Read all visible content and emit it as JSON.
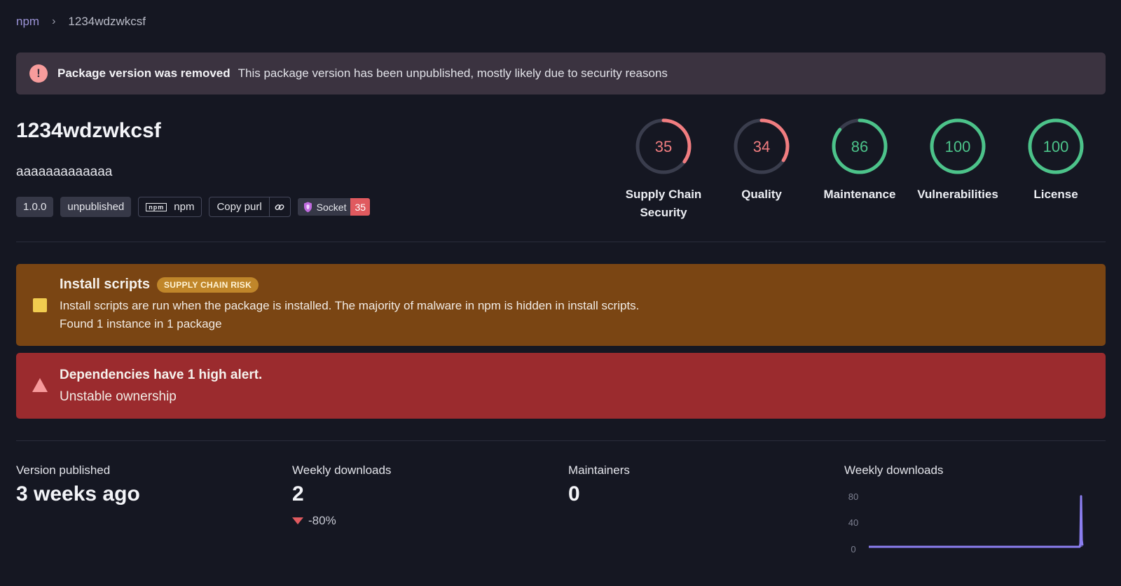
{
  "breadcrumb": {
    "root": "npm",
    "separator": "›",
    "current": "1234wdzwkcsf"
  },
  "banner": {
    "title": "Package version was removed",
    "text": "This package version has been unpublished, mostly likely due to security reasons"
  },
  "package": {
    "name": "1234wdzwkcsf",
    "description": "aaaaaaaaaaaaa",
    "version": "1.0.0",
    "status": "unpublished",
    "registry": "npm",
    "copy_purl": "Copy purl",
    "socket_label": "Socket",
    "socket_score": "35"
  },
  "scores": [
    {
      "value": "35",
      "label": "Supply Chain Security",
      "fraction": 0.35,
      "color": "#f17d80"
    },
    {
      "value": "34",
      "label": "Quality",
      "fraction": 0.34,
      "color": "#f17d80"
    },
    {
      "value": "86",
      "label": "Maintenance",
      "fraction": 0.86,
      "color": "#4cc38a"
    },
    {
      "value": "100",
      "label": "Vulnerabilities",
      "fraction": 1.0,
      "color": "#4cc38a"
    },
    {
      "value": "100",
      "label": "License",
      "fraction": 1.0,
      "color": "#4cc38a"
    }
  ],
  "alerts": {
    "install_scripts": {
      "title": "Install scripts",
      "badge": "SUPPLY CHAIN RISK",
      "description": "Install scripts are run when the package is installed. The majority of malware in npm is hidden in install scripts.",
      "instances": "Found 1 instance in 1 package"
    },
    "dependencies": {
      "title": "Dependencies have 1 high alert.",
      "detail": "Unstable ownership"
    }
  },
  "stats": {
    "version_published": {
      "label": "Version published",
      "value": "3 weeks ago"
    },
    "weekly_downloads": {
      "label": "Weekly downloads",
      "value": "2",
      "change": "-80%"
    },
    "maintainers": {
      "label": "Maintainers",
      "value": "0"
    },
    "chart_label": "Weekly downloads"
  },
  "colors": {
    "background": "#151722",
    "risk_red": "#f17d80",
    "good_green": "#4cc38a",
    "sparkline": "#8b7ef0"
  },
  "chart_data": {
    "type": "area",
    "title": "Weekly downloads",
    "yticks": [
      "80",
      "40",
      "0"
    ],
    "ylim": [
      0,
      80
    ],
    "values": [
      0,
      0,
      0,
      0,
      0,
      0,
      0,
      0,
      0,
      0,
      0,
      0,
      0,
      0,
      0,
      0,
      0,
      0,
      0,
      0,
      0,
      0,
      0,
      0,
      0,
      0,
      0,
      0,
      0,
      0,
      0,
      0,
      0,
      0,
      0,
      0,
      0,
      0,
      0,
      0,
      0,
      0,
      0,
      0,
      0,
      0,
      0,
      0,
      0,
      0,
      0,
      0,
      0,
      0,
      0,
      0,
      0,
      0,
      0,
      0,
      0,
      0,
      0,
      0,
      0,
      0,
      0,
      0,
      0,
      0,
      0,
      0,
      0,
      0,
      0,
      0,
      0,
      0,
      0,
      0,
      0,
      0,
      0,
      0,
      0,
      0,
      0,
      0,
      0,
      0,
      0,
      0,
      0,
      0,
      0,
      0,
      0,
      0,
      0,
      0,
      0,
      0,
      0,
      0,
      0,
      0,
      0,
      0,
      0,
      0,
      0,
      0,
      0,
      0,
      0,
      0,
      0,
      0,
      0,
      0,
      0,
      0,
      0,
      0,
      0,
      0,
      0,
      0,
      0,
      0,
      0,
      0,
      0,
      0,
      0,
      0,
      0,
      0,
      0,
      0,
      0,
      0,
      0,
      0,
      0,
      0,
      0,
      0,
      0,
      0,
      0,
      0,
      0,
      0,
      0,
      0,
      0,
      0,
      0,
      0,
      0,
      0,
      0,
      0,
      0,
      0,
      0,
      0,
      0,
      0,
      0,
      0,
      0,
      0,
      0,
      0,
      0,
      0,
      0,
      0,
      0,
      0,
      0,
      0,
      0,
      0,
      0,
      0,
      0,
      0,
      0,
      0,
      0,
      0,
      0,
      0,
      0,
      0,
      0,
      0,
      0,
      0,
      0,
      0,
      0,
      0,
      0,
      0,
      0,
      0,
      0,
      0,
      0,
      0,
      0,
      0,
      0,
      0,
      0,
      0,
      0,
      0,
      0,
      0,
      0,
      0,
      0,
      0,
      0,
      0,
      0,
      0,
      0,
      0,
      0,
      0,
      0,
      0,
      0,
      0,
      0,
      0,
      0,
      0,
      0,
      0,
      0,
      0,
      0,
      0,
      0,
      0,
      0,
      0,
      0,
      0,
      0,
      0,
      0,
      0,
      0,
      0,
      0,
      0,
      0,
      0,
      0,
      0,
      0,
      0,
      0,
      0,
      0,
      0,
      0,
      0,
      0,
      0,
      0,
      0,
      0,
      0,
      0,
      0,
      0,
      0,
      0,
      0,
      0,
      0,
      0,
      0,
      0,
      0,
      0,
      0,
      0,
      0,
      0,
      0,
      0,
      0,
      0,
      0,
      0,
      0,
      0,
      5,
      75,
      10,
      2
    ]
  }
}
